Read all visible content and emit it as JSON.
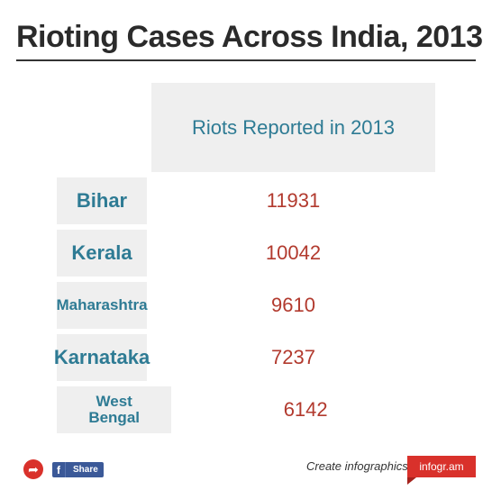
{
  "title": "Rioting Cases Across India, 2013",
  "colors": {
    "category_text": "#2e7b94",
    "value_text": "#b23a2e",
    "cell_bg": "#efefef",
    "brand": "#d9312b"
  },
  "chart_data": {
    "type": "table",
    "title": "Rioting Cases Across India, 2013",
    "columns": [
      "Riots Reported in 2013"
    ],
    "categories": [
      "Bihar",
      "Kerala",
      "Maharashtra",
      "Karnataka",
      "West Bengal"
    ],
    "series": [
      {
        "name": "Riots Reported in 2013",
        "values": [
          11931,
          10042,
          9610,
          7237,
          6142
        ]
      }
    ]
  },
  "footer": {
    "share_icon": "share-arrow-icon",
    "facebook_label": "Share",
    "facebook_icon": "facebook-icon",
    "create_text": "Create infographics",
    "brand_text": "infogr.am"
  }
}
